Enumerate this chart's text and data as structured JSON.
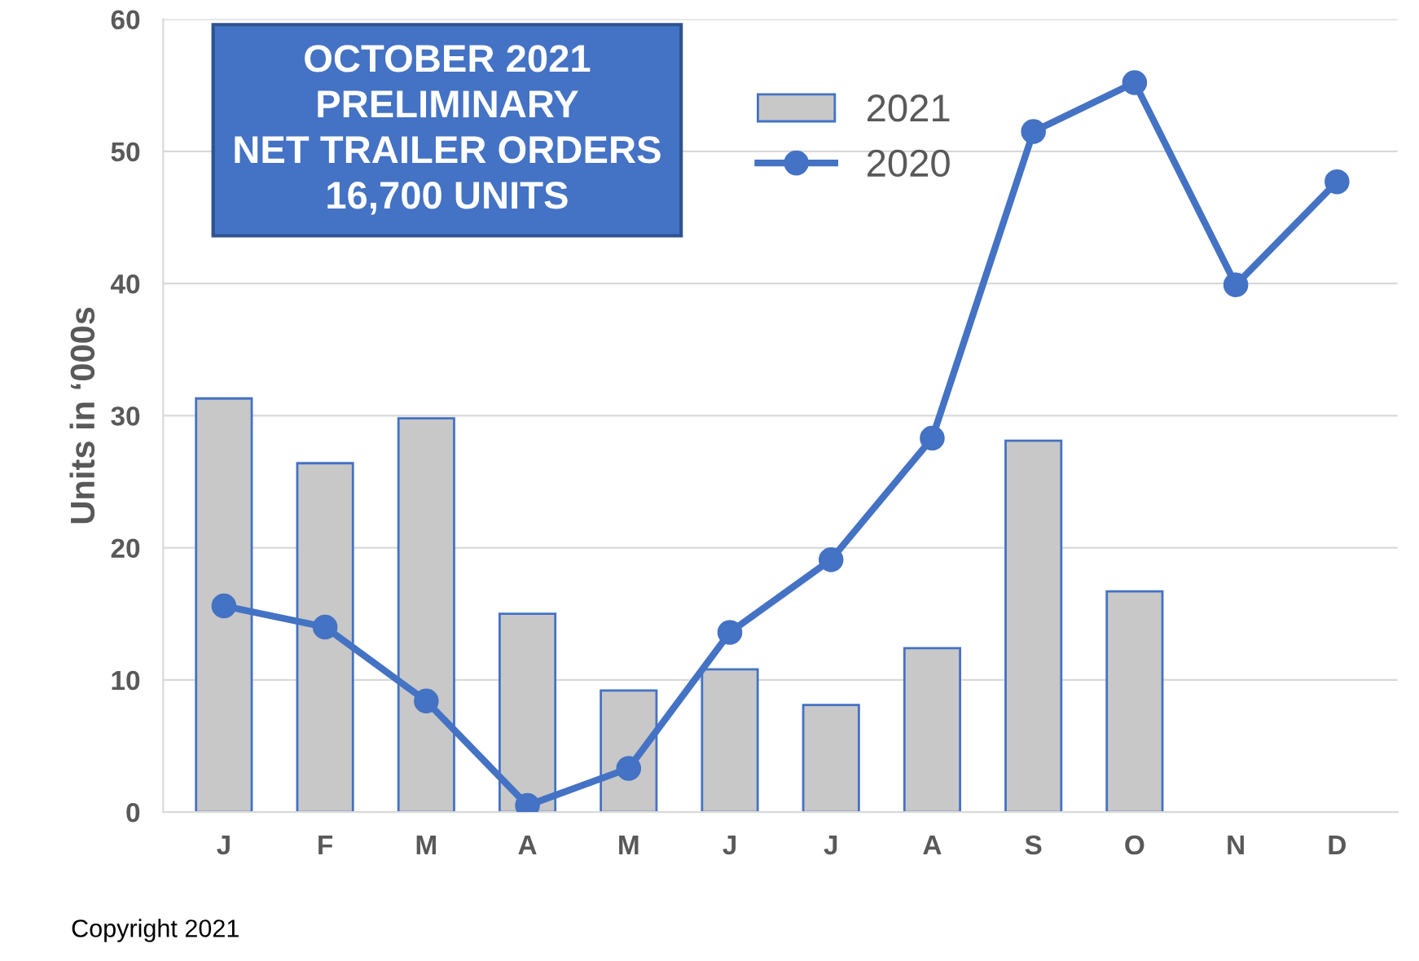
{
  "chart_data": {
    "type": "bar",
    "title": "OCTOBER 2021\nPRELIMINARY\nNET TRAILER ORDERS\n16,700 UNITS",
    "ylabel": "Units in ‘000s",
    "categories": [
      "J",
      "F",
      "M",
      "A",
      "M",
      "J",
      "J",
      "A",
      "S",
      "O",
      "N",
      "D"
    ],
    "series": [
      {
        "name": "2021",
        "color": "#c8c8c8",
        "values": [
          31.3,
          26.4,
          29.8,
          15.0,
          9.2,
          10.8,
          8.1,
          12.4,
          28.1,
          16.7,
          null,
          null
        ]
      },
      {
        "name": "2020",
        "type": "line",
        "color": "#4472c4",
        "marker": "circle",
        "values": [
          15.6,
          14.0,
          8.4,
          0.5,
          3.3,
          13.6,
          19.1,
          28.3,
          51.5,
          55.2,
          39.9,
          47.7
        ]
      }
    ],
    "ylim": [
      0,
      60
    ],
    "yticks": [
      0,
      10,
      20,
      30,
      40,
      50,
      60
    ],
    "grid": "y",
    "legend": "top",
    "annotations": [
      "Copyright 2021"
    ]
  }
}
